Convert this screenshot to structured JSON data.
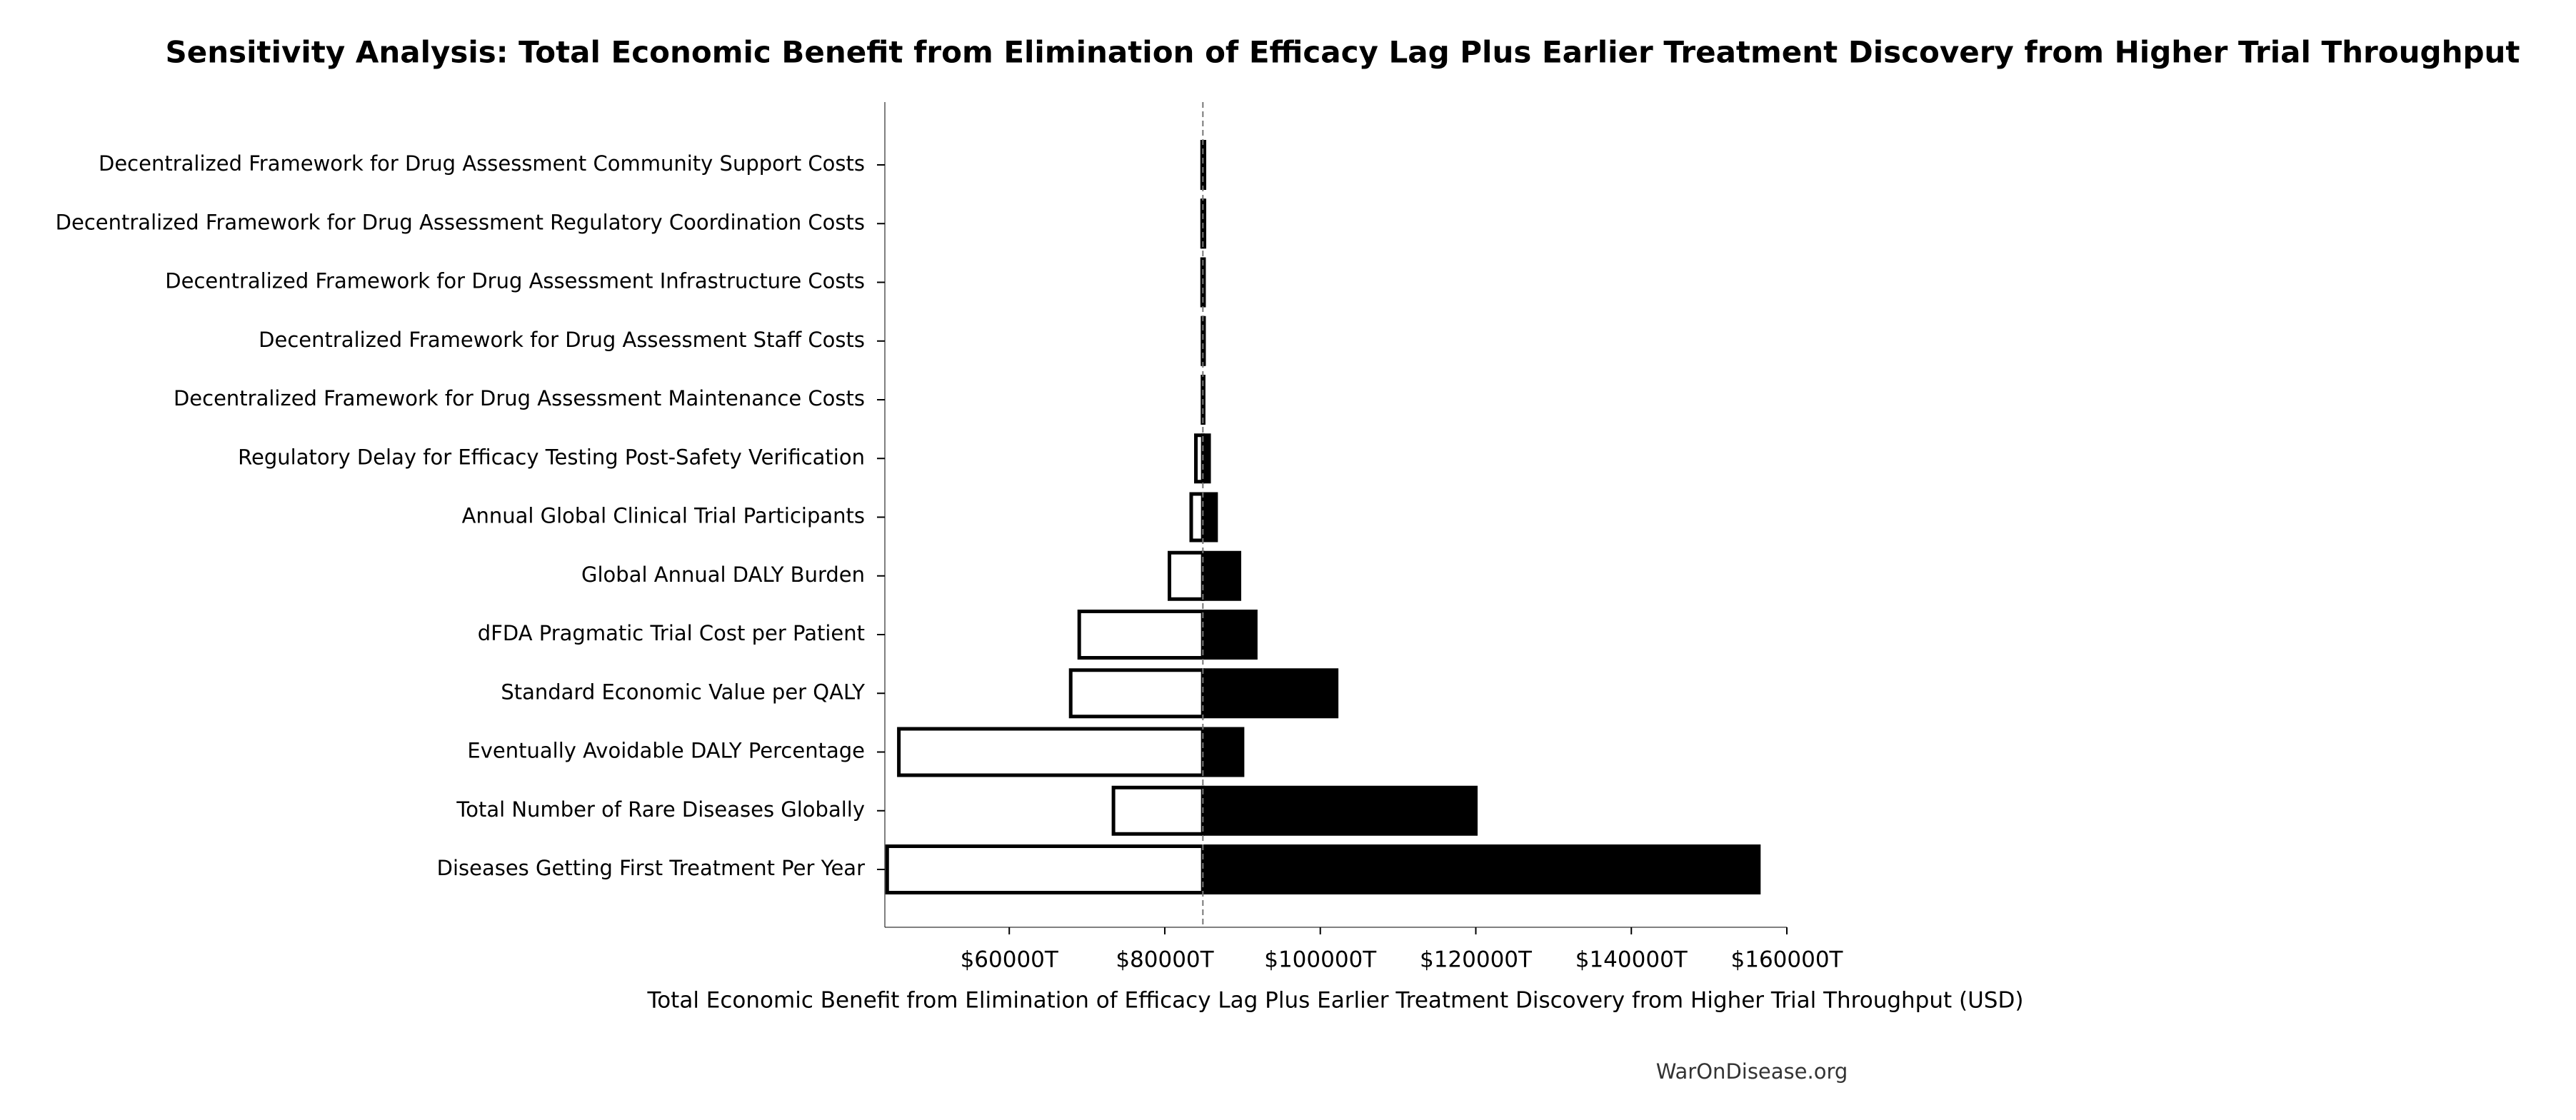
{
  "chart_data": {
    "type": "tornado",
    "title": "Sensitivity Analysis: Total Economic Benefit from Elimination of Efficacy Lag Plus Earlier Treatment Discovery from Higher Trial Throughput",
    "xlabel": "Total Economic Benefit from Elimination of Efficacy Lag Plus Earlier Treatment Discovery from Higher Trial Throughput (USD)",
    "source": "WarOnDisease.org",
    "categories": [
      "Decentralized Framework for Drug Assessment Community Support Costs",
      "Decentralized Framework for Drug Assessment Regulatory Coordination Costs",
      "Decentralized Framework for Drug Assessment Infrastructure Costs",
      "Decentralized Framework for Drug Assessment Staff Costs",
      "Decentralized Framework for Drug Assessment Maintenance Costs",
      "Regulatory Delay for Efficacy Testing Post-Safety Verification",
      "Annual Global Clinical Trial Participants",
      "Global Annual DALY Burden",
      "dFDA Pragmatic Trial Cost per Patient",
      "Standard Economic Value per QALY",
      "Eventually Avoidable DALY Percentage",
      "Total Number of Rare Diseases Globally",
      "Diseases Getting First Treatment Per Year"
    ],
    "base": 84900,
    "low": [
      84800,
      84800,
      84800,
      84850,
      84850,
      84000,
      83400,
      80600,
      69000,
      67900,
      45800,
      73400,
      44300
    ],
    "high": [
      85100,
      85100,
      85050,
      85050,
      85000,
      85700,
      86600,
      89600,
      91700,
      102100,
      90000,
      120000,
      156400
    ],
    "low_color": "#ffffff",
    "high_color": "#000000",
    "xlim": [
      44000,
      160000
    ],
    "xticks": [
      {
        "value": 60000,
        "label": "$60000T"
      },
      {
        "value": 80000,
        "label": "$80000T"
      },
      {
        "value": 100000,
        "label": "$100000T"
      },
      {
        "value": 120000,
        "label": "$120000T"
      },
      {
        "value": 140000,
        "label": "$140000T"
      },
      {
        "value": 160000,
        "label": "$160000T"
      }
    ]
  }
}
